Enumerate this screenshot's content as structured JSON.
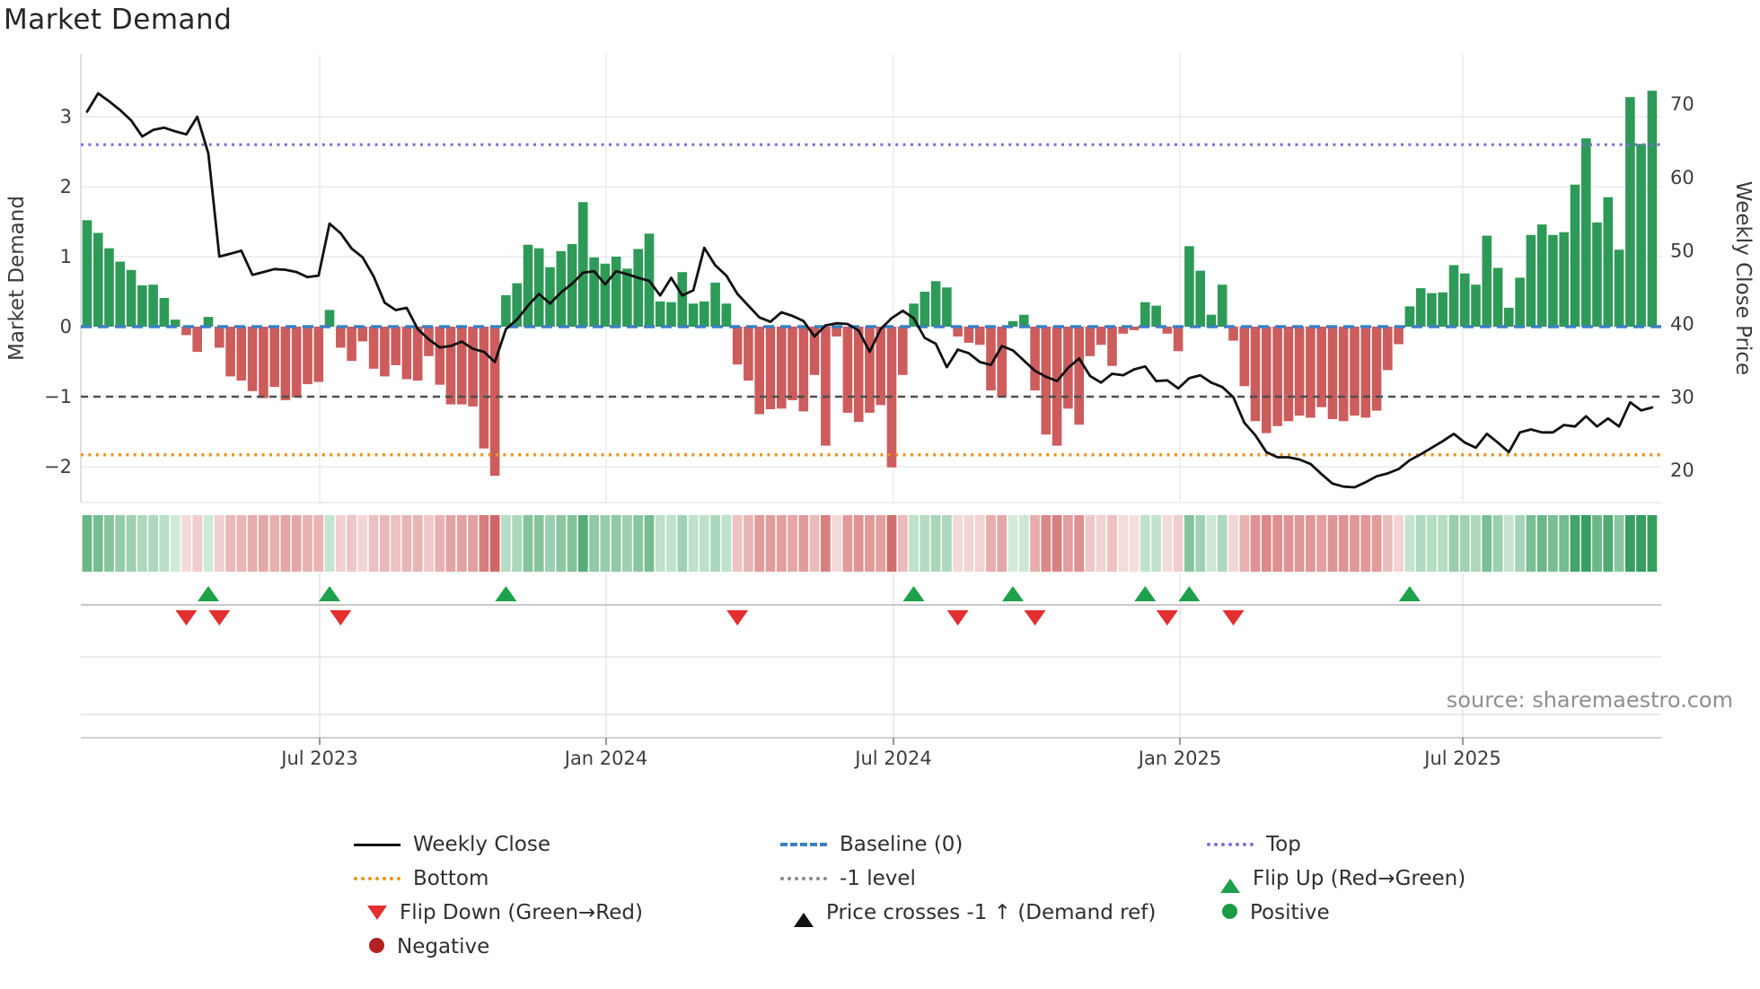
{
  "title": "Market Demand",
  "source": "source: sharemaestro.com",
  "chart_data": {
    "type": "bar+line",
    "title": "Market Demand",
    "x_axis": {
      "tick_labels": [
        "Jul 2023",
        "Jan 2024",
        "Jul 2024",
        "Jan 2025",
        "Jul 2025"
      ]
    },
    "left_axis": {
      "label": "Market Demand",
      "tick_values": [
        3,
        2,
        1,
        0,
        -1,
        -2
      ],
      "range": [
        -2.5,
        3.9
      ]
    },
    "right_axis": {
      "label": "Weekly Close Price",
      "tick_values": [
        70,
        60,
        50,
        40,
        30,
        20
      ],
      "range": [
        15,
        72.5
      ]
    },
    "grid": true,
    "ref_lines": [
      {
        "name": "Top",
        "value": 2.6,
        "style": "dotted",
        "color": "#7b6fe0",
        "width": 3.2
      },
      {
        "name": "Baseline (0)",
        "value": 0,
        "style": "dashed",
        "color": "#3b80c2",
        "width": 3.4
      },
      {
        "name": "-1 level",
        "value": -1,
        "style": "dash",
        "color": "#4f4f4f",
        "width": 2.6
      },
      {
        "name": "Bottom",
        "value": -1.83,
        "style": "dotted",
        "color": "#f0921e",
        "width": 3.6
      }
    ],
    "series": [
      {
        "name": "Market Demand (weekly bars)",
        "axis": "left",
        "values": [
          1.52,
          1.34,
          1.12,
          0.93,
          0.81,
          0.59,
          0.6,
          0.41,
          0.1,
          -0.12,
          -0.36,
          0.14,
          -0.3,
          -0.71,
          -0.77,
          -0.92,
          -1.02,
          -0.86,
          -1.05,
          -1.01,
          -0.82,
          -0.79,
          0.24,
          -0.3,
          -0.49,
          -0.21,
          -0.6,
          -0.71,
          -0.55,
          -0.75,
          -0.77,
          -0.42,
          -0.83,
          -1.11,
          -1.11,
          -1.14,
          -1.74,
          -2.13,
          0.45,
          0.62,
          1.17,
          1.12,
          0.85,
          1.08,
          1.18,
          1.78,
          0.99,
          0.9,
          1.0,
          0.83,
          1.11,
          1.33,
          0.36,
          0.35,
          0.78,
          0.33,
          0.36,
          0.63,
          0.33,
          -0.54,
          -0.77,
          -1.25,
          -1.18,
          -1.17,
          -1.05,
          -1.21,
          -0.69,
          -1.7,
          -0.14,
          -1.23,
          -1.36,
          -1.23,
          -1.12,
          -2.01,
          -0.69,
          0.33,
          0.5,
          0.65,
          0.56,
          -0.14,
          -0.23,
          -0.26,
          -0.91,
          -1.01,
          0.08,
          0.17,
          -0.91,
          -1.54,
          -1.7,
          -1.17,
          -1.4,
          -0.42,
          -0.26,
          -0.56,
          -0.1,
          -0.05,
          0.35,
          0.3,
          -0.1,
          -0.35,
          1.15,
          0.8,
          0.17,
          0.6,
          -0.2,
          -0.85,
          -1.35,
          -1.52,
          -1.42,
          -1.35,
          -1.27,
          -1.3,
          -1.15,
          -1.32,
          -1.35,
          -1.27,
          -1.3,
          -1.2,
          -0.62,
          -0.25,
          0.29,
          0.55,
          0.48,
          0.49,
          0.88,
          0.76,
          0.6,
          1.3,
          0.84,
          0.27,
          0.7,
          1.31,
          1.46,
          1.31,
          1.35,
          2.03,
          2.69,
          1.49,
          1.85,
          1.1,
          3.28,
          2.61,
          3.37
        ]
      },
      {
        "name": "Weekly Close",
        "axis": "right",
        "values": [
          69.0,
          71.5,
          70.4,
          69.2,
          67.8,
          65.6,
          66.5,
          66.8,
          66.3,
          65.9,
          68.3,
          63.3,
          49.2,
          49.6,
          50.0,
          46.7,
          47.1,
          47.5,
          47.4,
          47.1,
          46.4,
          46.6,
          53.7,
          52.4,
          50.3,
          49.1,
          46.5,
          42.9,
          41.9,
          42.2,
          39.3,
          37.9,
          36.8,
          37.0,
          37.6,
          36.6,
          36.2,
          34.8,
          39.3,
          40.6,
          42.5,
          44.1,
          42.8,
          44.3,
          45.5,
          47.0,
          47.2,
          45.4,
          47.2,
          46.8,
          46.3,
          45.9,
          43.9,
          46.3,
          43.9,
          44.6,
          50.4,
          48.0,
          46.6,
          44.1,
          42.5,
          40.9,
          40.3,
          41.6,
          41.1,
          40.4,
          38.3,
          39.8,
          40.1,
          40.0,
          39.1,
          36.2,
          39.3,
          40.8,
          41.8,
          40.8,
          38.1,
          37.3,
          34.1,
          36.5,
          36.0,
          34.8,
          34.4,
          37.0,
          36.4,
          35.0,
          33.6,
          32.8,
          32.2,
          34.0,
          35.3,
          32.9,
          32.0,
          33.2,
          33.0,
          33.8,
          34.2,
          32.2,
          32.3,
          31.2,
          32.6,
          33.0,
          32.0,
          31.4,
          30.0,
          26.5,
          24.8,
          22.5,
          21.8,
          21.8,
          21.5,
          20.9,
          19.5,
          18.2,
          17.8,
          17.7,
          18.4,
          19.2,
          19.6,
          20.2,
          21.4,
          22.2,
          23.1,
          24.0,
          25.0,
          23.8,
          23.1,
          25.0,
          23.8,
          22.5,
          25.2,
          25.6,
          25.2,
          25.2,
          26.2,
          26.0,
          27.4,
          26.0,
          27.1,
          26.0,
          29.3,
          28.2,
          28.6
        ]
      }
    ],
    "markers": {
      "flip_up_weeks": [
        11,
        22,
        38,
        75,
        84,
        96,
        100,
        120
      ],
      "flip_down_weeks": [
        9,
        12,
        23,
        59,
        79,
        86,
        98,
        104
      ],
      "price_cross_weeks": []
    },
    "heat_strip": {
      "note": "weekly cells; green when demand >= 0, red when < 0, opacity scales with |demand|"
    },
    "colors": {
      "positive_bar": "#2e9a57",
      "negative_bar": "#cd5c5c",
      "price_line": "#111111",
      "baseline": "#3b80c2",
      "top_line": "#7b6fe0",
      "bottom_line": "#f0921e",
      "minus1_line": "#4f4f4f",
      "flip_up": "#1da14a",
      "flip_down": "#e22f2f",
      "positive_dot": "#1d9b47",
      "negative_dot": "#b22222",
      "grid": "#e9e9f0",
      "tick_text": "#3d3d3d"
    },
    "legend": {
      "columns": [
        [
          {
            "swatch": "line",
            "color": "#111111",
            "label": "Weekly Close"
          },
          {
            "swatch": "dotted",
            "color": "#f0921e",
            "label": "Bottom"
          },
          {
            "swatch": "tri-down",
            "color": "#e22f2f",
            "label": "Flip Down (Green→Red)"
          },
          {
            "swatch": "circle",
            "color": "#b22222",
            "label": "Negative"
          }
        ],
        [
          {
            "swatch": "dashed",
            "color": "#3b80c2",
            "label": "Baseline (0)"
          },
          {
            "swatch": "dotted",
            "color": "#8a8a8a",
            "label": "-1 level"
          },
          {
            "swatch": "tri-up",
            "color": "#111111",
            "label": "Price crosses -1 ↑ (Demand ref)"
          }
        ],
        [
          {
            "swatch": "dotted",
            "color": "#7b6fe0",
            "label": "Top"
          },
          {
            "swatch": "tri-up",
            "color": "#1da14a",
            "label": "Flip Up (Red→Green)"
          },
          {
            "swatch": "circle",
            "color": "#1d9b47",
            "label": "Positive"
          }
        ]
      ]
    }
  }
}
